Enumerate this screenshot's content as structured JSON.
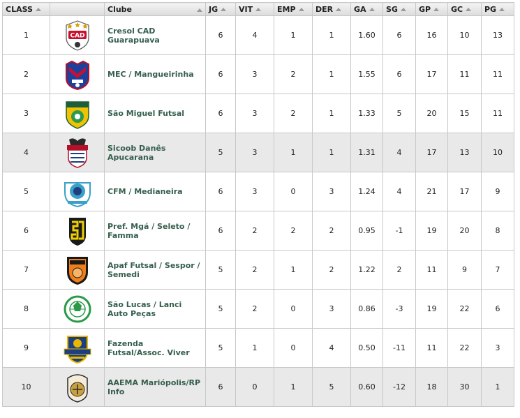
{
  "headers": {
    "class": "CLASS",
    "logo": "",
    "club": "Clube",
    "jg": "JG",
    "vit": "VIT",
    "emp": "EMP",
    "der": "DER",
    "ga": "GA",
    "sg": "SG",
    "gp": "GP",
    "gc": "GC",
    "pg": "PG"
  },
  "rows": [
    {
      "pos": "1",
      "club": "Cresol CAD Guarapuava",
      "jg": "6",
      "vit": "4",
      "emp": "1",
      "der": "1",
      "ga": "1.60",
      "sg": "6",
      "gp": "16",
      "gc": "10",
      "pg": "13",
      "crest": "cad-crest-icon"
    },
    {
      "pos": "2",
      "club": "MEC / Mangueirinha",
      "jg": "6",
      "vit": "3",
      "emp": "2",
      "der": "1",
      "ga": "1.55",
      "sg": "6",
      "gp": "17",
      "gc": "11",
      "pg": "11",
      "crest": "mec-crest-icon"
    },
    {
      "pos": "3",
      "club": "São Miguel Futsal",
      "jg": "6",
      "vit": "3",
      "emp": "2",
      "der": "1",
      "ga": "1.33",
      "sg": "5",
      "gp": "20",
      "gc": "15",
      "pg": "11",
      "crest": "sao-miguel-crest-icon"
    },
    {
      "pos": "4",
      "club": "Sicoob Danês Apucarana",
      "jg": "5",
      "vit": "3",
      "emp": "1",
      "der": "1",
      "ga": "1.31",
      "sg": "4",
      "gp": "17",
      "gc": "13",
      "pg": "10",
      "crest": "apucarana-crest-icon"
    },
    {
      "pos": "5",
      "club": "CFM / Medianeira",
      "jg": "6",
      "vit": "3",
      "emp": "0",
      "der": "3",
      "ga": "1.24",
      "sg": "4",
      "gp": "21",
      "gc": "17",
      "pg": "9",
      "crest": "cfm-crest-icon"
    },
    {
      "pos": "6",
      "club": "Pref. Mgá / Seleto / Famma",
      "jg": "6",
      "vit": "2",
      "emp": "2",
      "der": "2",
      "ga": "0.95",
      "sg": "-1",
      "gp": "19",
      "gc": "20",
      "pg": "8",
      "crest": "maringa-crest-icon"
    },
    {
      "pos": "7",
      "club": "Apaf Futsal / Sespor / Semedi",
      "jg": "5",
      "vit": "2",
      "emp": "1",
      "der": "2",
      "ga": "1.22",
      "sg": "2",
      "gp": "11",
      "gc": "9",
      "pg": "7",
      "crest": "apaf-crest-icon"
    },
    {
      "pos": "8",
      "club": "São Lucas / Lanci Auto Peças",
      "jg": "5",
      "vit": "2",
      "emp": "0",
      "der": "3",
      "ga": "0.86",
      "sg": "-3",
      "gp": "19",
      "gc": "22",
      "pg": "6",
      "crest": "sao-lucas-crest-icon"
    },
    {
      "pos": "9",
      "club": "Fazenda Futsal/Assoc. Viver",
      "jg": "5",
      "vit": "1",
      "emp": "0",
      "der": "4",
      "ga": "0.50",
      "sg": "-11",
      "gp": "11",
      "gc": "22",
      "pg": "3",
      "crest": "fazenda-crest-icon"
    },
    {
      "pos": "10",
      "club": "AAEMA Mariópolis/RP Info",
      "jg": "6",
      "vit": "0",
      "emp": "1",
      "der": "5",
      "ga": "0.60",
      "sg": "-12",
      "gp": "18",
      "gc": "30",
      "pg": "1",
      "crest": "aaema-crest-icon"
    }
  ],
  "crest_colors": {
    "cad": "#c8102e",
    "mec": "#1f3f9c",
    "sao_miguel": "#f2c200",
    "apucarana": "#b5102a",
    "cfm": "#3aa0c8",
    "maringa": "#f0d000",
    "apaf": "#f07e1a",
    "sao_lucas": "#2a9a48",
    "fazenda": "#1d3f7f",
    "aaema": "#c8a040"
  }
}
